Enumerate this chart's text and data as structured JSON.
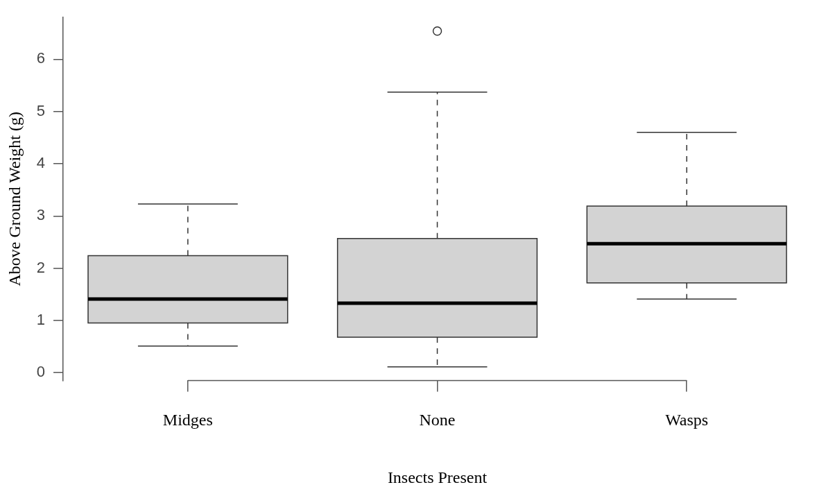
{
  "chart_data": {
    "type": "box",
    "xlabel": "Insects Present",
    "ylabel": "Above Ground Weight (g)",
    "categories": [
      "Midges",
      "None",
      "Wasps"
    ],
    "color": "#d3d3d3",
    "boxes": [
      {
        "low": 0.51,
        "q1": 0.95,
        "median": 1.41,
        "q3": 2.24,
        "high": 3.23
      },
      {
        "low": 0.11,
        "q1": 0.68,
        "median": 1.33,
        "q3": 2.57,
        "high": 5.37,
        "outliers": [
          6.54
        ]
      },
      {
        "low": 1.41,
        "q1": 1.72,
        "median": 2.47,
        "q3": 3.19,
        "high": 4.6
      }
    ],
    "ylim": [
      -0.15,
      6.8
    ],
    "yticks": [
      0,
      1,
      2,
      3,
      4,
      5,
      6
    ]
  }
}
